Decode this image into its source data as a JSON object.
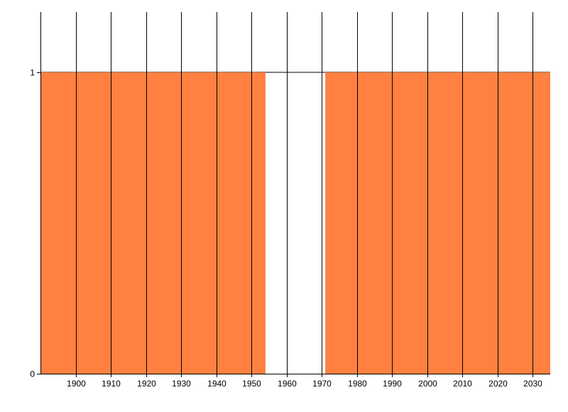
{
  "chart_data": {
    "type": "area",
    "title": "",
    "xlabel": "",
    "ylabel": "",
    "xlim": [
      1890,
      2035
    ],
    "ylim": [
      0,
      1
    ],
    "x_ticks": [
      "1900",
      "1910",
      "1920",
      "1930",
      "1940",
      "1950",
      "1960",
      "1970",
      "1980",
      "1990",
      "2000",
      "2010",
      "2020",
      "2030"
    ],
    "y_ticks": [
      "0",
      "1"
    ],
    "grid": "vertical",
    "series": [
      {
        "color": "#FF8040",
        "segments": [
          {
            "x_start": 1890,
            "x_end": 1954,
            "value": 1
          },
          {
            "x_start": 1971,
            "x_end": 2035,
            "value": 1
          }
        ]
      }
    ]
  }
}
